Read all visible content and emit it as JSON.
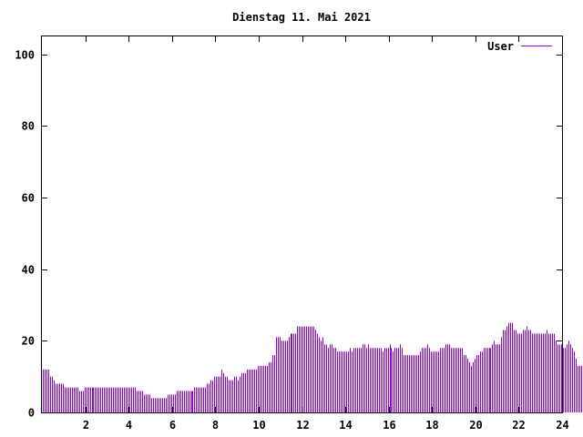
{
  "chart_data": {
    "type": "bar",
    "title": "Dienstag 11. Mai 2021",
    "xlabel": "",
    "ylabel": "",
    "xlim": [
      0,
      24
    ],
    "ylim": [
      0,
      105
    ],
    "x_ticks": [
      2,
      4,
      6,
      8,
      10,
      12,
      14,
      16,
      18,
      20,
      22,
      24
    ],
    "y_ticks": [
      0,
      20,
      40,
      60,
      80,
      100
    ],
    "grid": false,
    "legend_position": "top-right",
    "series": [
      {
        "name": "User",
        "color": "#9400d3",
        "bin_width_hours": 0.0833,
        "values": [
          12,
          12,
          12,
          12,
          10,
          10,
          9,
          8,
          8,
          8,
          8,
          8,
          7,
          7,
          7,
          7,
          7,
          7,
          7,
          7,
          6,
          6,
          6,
          7,
          7,
          7,
          7,
          7,
          7,
          7,
          7,
          7,
          7,
          7,
          7,
          7,
          7,
          7,
          7,
          7,
          7,
          7,
          7,
          7,
          7,
          7,
          7,
          7,
          7,
          7,
          7,
          7,
          6,
          6,
          6,
          6,
          5,
          5,
          5,
          5,
          4,
          4,
          4,
          4,
          4,
          4,
          4,
          4,
          4,
          5,
          5,
          5,
          5,
          5,
          6,
          6,
          6,
          6,
          6,
          6,
          6,
          6,
          6,
          6,
          7,
          7,
          7,
          7,
          7,
          7,
          7,
          8,
          8,
          9,
          9,
          10,
          10,
          10,
          10,
          12,
          11,
          10,
          10,
          9,
          9,
          9,
          10,
          10,
          9,
          10,
          11,
          11,
          11,
          12,
          12,
          12,
          12,
          12,
          12,
          13,
          13,
          13,
          13,
          13,
          13,
          14,
          14,
          16,
          16,
          21,
          21,
          21,
          20,
          20,
          20,
          20,
          21,
          22,
          22,
          22,
          22,
          24,
          24,
          24,
          24,
          24,
          24,
          24,
          24,
          24,
          24,
          23,
          22,
          21,
          20,
          21,
          19,
          19,
          18,
          19,
          19,
          18,
          18,
          17,
          17,
          17,
          17,
          17,
          17,
          17,
          18,
          17,
          18,
          18,
          18,
          18,
          18,
          19,
          19,
          18,
          19,
          18,
          18,
          18,
          18,
          18,
          18,
          18,
          17,
          18,
          18,
          18,
          19,
          18,
          17,
          18,
          18,
          18,
          19,
          18,
          16,
          16,
          16,
          16,
          16,
          16,
          16,
          16,
          16,
          17,
          18,
          18,
          18,
          19,
          18,
          17,
          17,
          17,
          17,
          17,
          18,
          18,
          18,
          19,
          19,
          19,
          18,
          18,
          18,
          18,
          18,
          18,
          18,
          16,
          16,
          15,
          14,
          13,
          14,
          15,
          16,
          16,
          17,
          17,
          18,
          18,
          18,
          18,
          18,
          19,
          20,
          19,
          19,
          19,
          21,
          23,
          23,
          24,
          25,
          25,
          25,
          23,
          23,
          22,
          22,
          22,
          23,
          23,
          24,
          23,
          23,
          22,
          22,
          22,
          22,
          22,
          22,
          22,
          22,
          23,
          22,
          22,
          22,
          22,
          20,
          19,
          19,
          19,
          18,
          18,
          19,
          20,
          19,
          18,
          17,
          15,
          13,
          13,
          13,
          13,
          13,
          13,
          13,
          12,
          11
        ]
      }
    ]
  }
}
